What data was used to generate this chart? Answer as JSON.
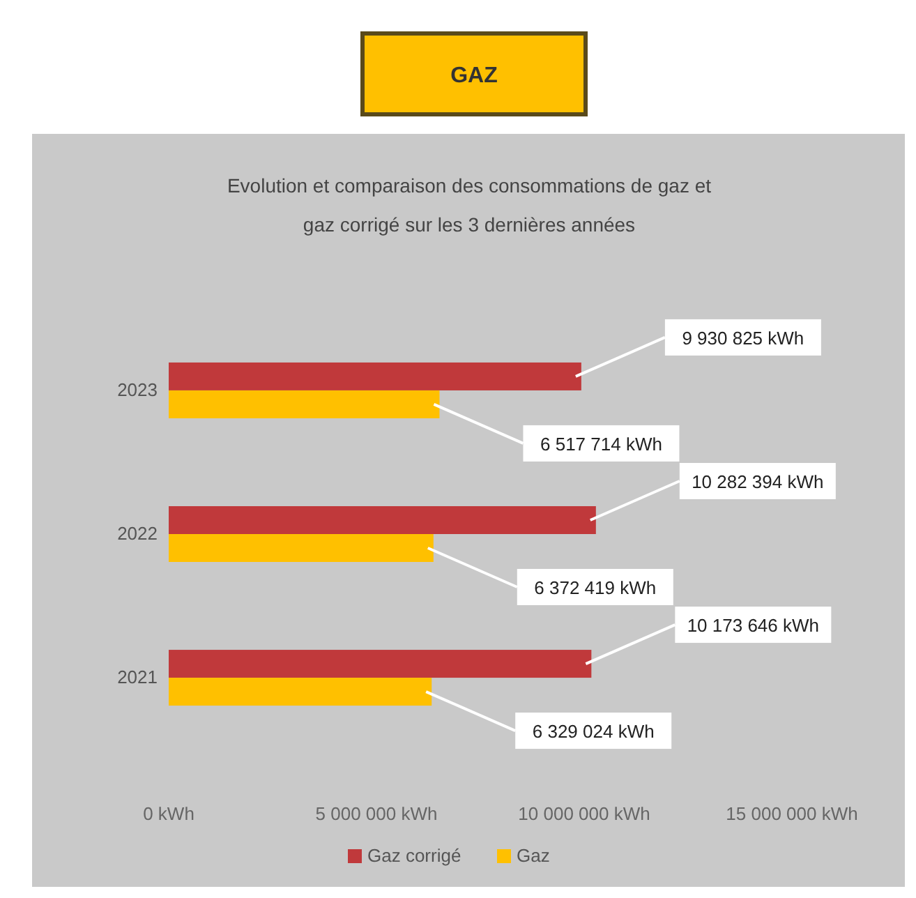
{
  "chart_data": {
    "type": "bar",
    "orientation": "horizontal",
    "title": "GAZ",
    "subtitle": "Evolution et comparaison des consommations de gaz et gaz corrigé sur les 3 dernières années",
    "categories": [
      "2023",
      "2022",
      "2021"
    ],
    "series": [
      {
        "name": "Gaz corrigé",
        "color": "#c0393b",
        "values": [
          9930825,
          10282394,
          10173646
        ],
        "value_labels": [
          "9 930 825  kWh",
          "10 282 394 kWh",
          "10 173 646 kWh"
        ]
      },
      {
        "name": "Gaz",
        "color": "#ffc000",
        "values": [
          6517714,
          6372419,
          6329024
        ],
        "value_labels": [
          "6 517 714  kWh",
          "6 372 419  kWh",
          "6 329 024  kWh"
        ]
      }
    ],
    "xlim": [
      0,
      15000000
    ],
    "xticks": [
      {
        "value": 0,
        "label": "0 kWh"
      },
      {
        "value": 5000000,
        "label": "5 000 000 kWh"
      },
      {
        "value": 10000000,
        "label": "10 000 000 kWh"
      },
      {
        "value": 15000000,
        "label": "15 000 000 kWh"
      }
    ],
    "grid": false,
    "legend": "bottom"
  }
}
